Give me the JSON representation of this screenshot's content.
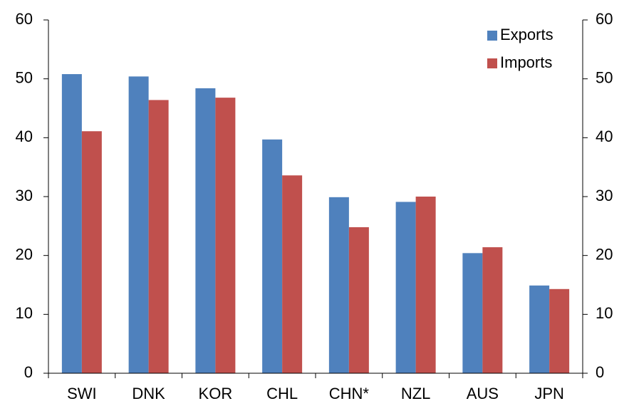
{
  "chart_data": {
    "type": "bar",
    "categories": [
      "SWI",
      "DNK",
      "KOR",
      "CHL",
      "CHN*",
      "NZL",
      "AUS",
      "JPN"
    ],
    "series": [
      {
        "name": "Exports",
        "color": "#4f81bd",
        "values": [
          50.8,
          50.4,
          48.4,
          39.7,
          29.9,
          29.1,
          20.4,
          14.9
        ]
      },
      {
        "name": "Imports",
        "color": "#c0504d",
        "values": [
          41.1,
          46.4,
          46.8,
          33.6,
          24.8,
          30.0,
          21.4,
          14.3
        ]
      }
    ],
    "ylim": [
      0,
      60
    ],
    "yticks": [
      0,
      10,
      20,
      30,
      40,
      50,
      60
    ],
    "y2lim": [
      0,
      60
    ],
    "y2ticks": [
      0,
      10,
      20,
      30,
      40,
      50,
      60
    ],
    "legend": "top-right"
  }
}
